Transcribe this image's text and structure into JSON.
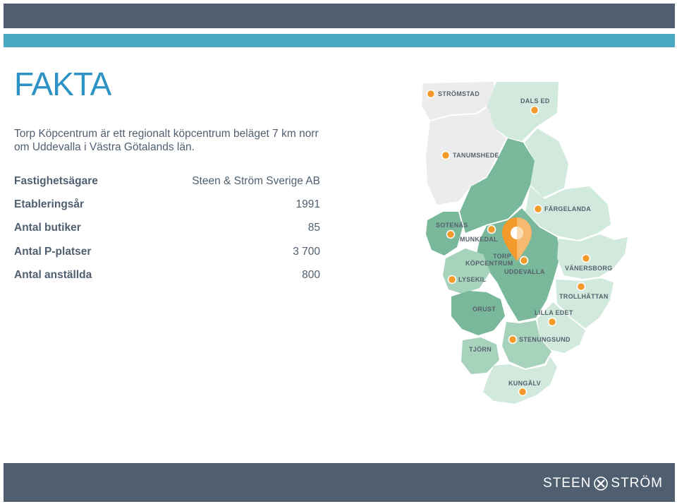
{
  "page": {
    "title": "FAKTA",
    "intro": "Torp Köpcentrum är ett regionalt köpcentrum beläget 7 km norr om Uddevalla i Västra Götalands län."
  },
  "facts": [
    {
      "label": "Fastighetsägare",
      "value": "Steen & Ström Sverige AB"
    },
    {
      "label": "Etableringsår",
      "value": "1991"
    },
    {
      "label": "Antal butiker",
      "value": "85"
    },
    {
      "label": "Antal P-platser",
      "value": "3 700"
    },
    {
      "label": "Antal anställda",
      "value": "800"
    }
  ],
  "map": {
    "places": {
      "stromstad": "STRÖMSTAD",
      "dals_ed": "DALS ED",
      "tanumshede": "TANUMSHEDE",
      "fargelanda": "FÄRGELANDA",
      "sotenas": "SOTENÄS",
      "munkedal": "MUNKEDAL",
      "torp_line1": "TORP",
      "torp_line2": "KÖPCENTRUM",
      "uddevalla": "UDDEVALLA",
      "vanersborg": "VÄNERSBORG",
      "lysekil": "LYSEKIL",
      "trollhattan": "TROLLHÄTTAN",
      "orust": "ORUST",
      "lilla_edet": "LILLA EDET",
      "stenungsund": "STENUNGSUND",
      "tjorn": "TJÖRN",
      "kungalv": "KUNGÄLV"
    },
    "colors": {
      "marker": "#f39a2a",
      "dark_green": "#79b89a",
      "mid_green": "#a7d3bd",
      "light_green": "#d2e9dd",
      "grey": "#ececec"
    },
    "pin_icon": "map-pin-icon"
  },
  "footer": {
    "logo_left": "STEEN",
    "logo_right": "STRÖM"
  }
}
